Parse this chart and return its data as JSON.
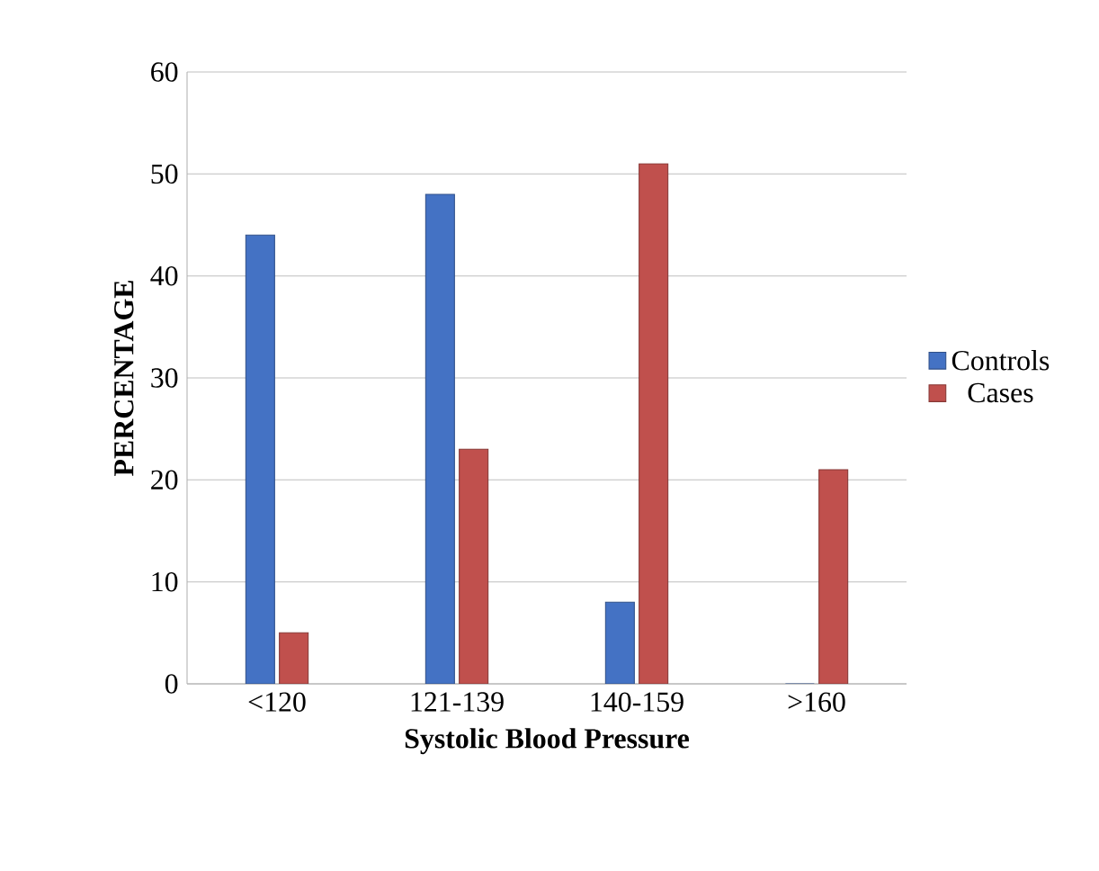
{
  "chart_data": {
    "type": "bar",
    "xlabel": "Systolic Blood Pressure",
    "ylabel": "PERCENTAGE",
    "categories": [
      "<120",
      "121-139",
      "140-159",
      ">160"
    ],
    "series": [
      {
        "name": "Controls",
        "color": "#4472c4",
        "values": [
          44,
          48,
          8,
          0
        ]
      },
      {
        "name": "Cases",
        "color": "#c0504d",
        "values": [
          5,
          23,
          51,
          21
        ]
      }
    ],
    "ylim": [
      0,
      60
    ],
    "yticks": [
      0,
      10,
      20,
      30,
      40,
      50,
      60
    ],
    "grid": "y",
    "legend": "right"
  }
}
